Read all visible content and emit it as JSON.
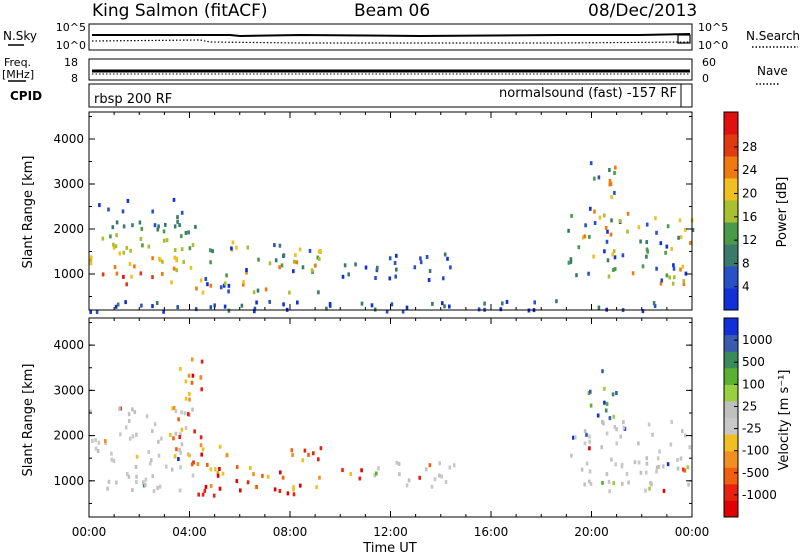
{
  "header": {
    "station": "King Salmon (fitACF)",
    "beam": "Beam 06",
    "date": "08/Dec/2013"
  },
  "top_panels": {
    "nsky_label": "N.Sky",
    "nsky_ticks": [
      "10^5",
      "10^0"
    ],
    "nsearch_label": "N.Search",
    "nsearch_ticks": [
      "10^5",
      "10^0"
    ],
    "freq_label_1": "Freq.",
    "freq_label_2": "[MHz]",
    "freq_ticks": [
      "18",
      "8"
    ],
    "nave_label": "Nave",
    "nave_ticks": [
      "60",
      "0"
    ],
    "cpid_label": "CPID",
    "cpid_left": "rbsp 200 RF",
    "cpid_right": "normalsound (fast) -157 RF"
  },
  "chart_data": [
    {
      "type": "heatmap",
      "name": "power-panel",
      "ylabel": "Slant Range [km]",
      "yticks": [
        "1000",
        "2000",
        "3000",
        "4000"
      ],
      "ylim": [
        200,
        4600
      ],
      "xlim_hours": [
        0,
        24
      ],
      "colorbar_label": "Power [dB]",
      "colorbar_ticks": [
        "4",
        "8",
        "12",
        "16",
        "20",
        "24",
        "28"
      ],
      "colorbar_colors": [
        "#1230d8",
        "#2a50c8",
        "#3a7a6a",
        "#4a9a4a",
        "#a8c030",
        "#f0c020",
        "#f07a10",
        "#e03a10",
        "#e01010"
      ],
      "echo_regions": [
        {
          "t0": 0.0,
          "t1": 4.2,
          "r0": 800,
          "r1": 2700,
          "level": "high"
        },
        {
          "t0": 4.2,
          "t1": 9.2,
          "r0": 600,
          "r1": 1800,
          "level": "mid"
        },
        {
          "t0": 10.0,
          "t1": 14.5,
          "r0": 900,
          "r1": 1500,
          "level": "low"
        },
        {
          "t0": 19.0,
          "t1": 24.0,
          "r0": 800,
          "r1": 2400,
          "level": "mid"
        },
        {
          "t0": 19.8,
          "t1": 21.0,
          "r0": 2400,
          "r1": 3600,
          "level": "mid"
        },
        {
          "t0": 0.0,
          "t1": 24.0,
          "r0": 200,
          "r1": 450,
          "level": "low"
        }
      ]
    },
    {
      "type": "heatmap",
      "name": "velocity-panel",
      "ylabel": "Slant Range [km]",
      "yticks": [
        "1000",
        "2000",
        "3000",
        "4000"
      ],
      "ylim": [
        200,
        4600
      ],
      "xlim_hours": [
        0,
        24
      ],
      "xlabel": "Time UT",
      "xticks": [
        "00:00",
        "04:00",
        "08:00",
        "12:00",
        "16:00",
        "20:00",
        "00:00"
      ],
      "colorbar_label": "Velocity [m s⁻¹]",
      "colorbar_ticks": [
        "1000",
        "500",
        "100",
        "25",
        "-25",
        "-100",
        "-500",
        "-1000"
      ],
      "colorbar_colors": [
        "#1230d8",
        "#3a5ab0",
        "#3a8a5a",
        "#5ab030",
        "#9ad040",
        "#c0c0c0",
        "#c8c8c8",
        "#f0c020",
        "#f09020",
        "#f06010",
        "#e82010",
        "#e00000"
      ],
      "echo_regions": [
        {
          "t0": 0.0,
          "t1": 4.2,
          "r0": 800,
          "r1": 2700,
          "level": "ground"
        },
        {
          "t0": 3.3,
          "t1": 4.5,
          "r0": 1400,
          "r1": 3800,
          "level": "neg"
        },
        {
          "t0": 4.2,
          "t1": 9.2,
          "r0": 700,
          "r1": 1800,
          "level": "neg"
        },
        {
          "t0": 10.0,
          "t1": 11.0,
          "r0": 1000,
          "r1": 1400,
          "level": "neg"
        },
        {
          "t0": 11.0,
          "t1": 14.5,
          "r0": 900,
          "r1": 1500,
          "level": "ground"
        },
        {
          "t0": 19.0,
          "t1": 24.0,
          "r0": 800,
          "r1": 2400,
          "level": "ground"
        },
        {
          "t0": 19.8,
          "t1": 21.0,
          "r0": 2400,
          "r1": 3600,
          "level": "pos"
        }
      ]
    }
  ]
}
